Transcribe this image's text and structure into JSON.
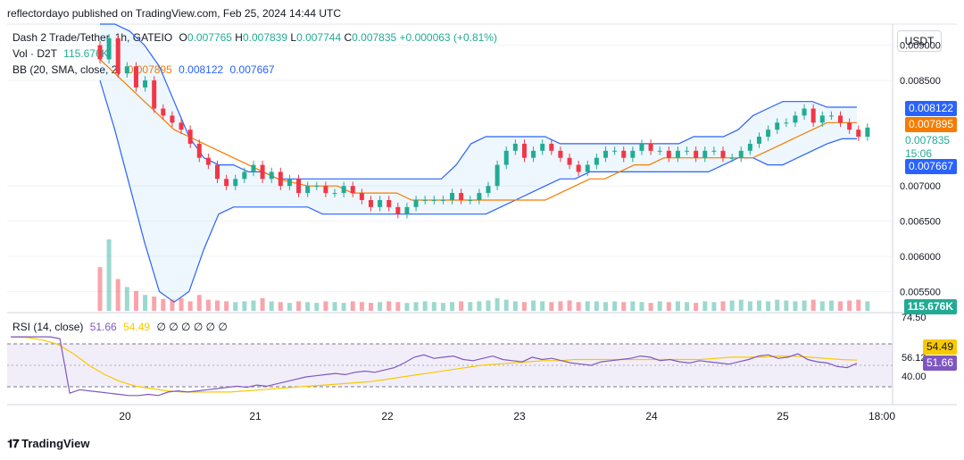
{
  "header": {
    "publisher": "reflectordayo published on TradingView.com, Feb 25, 2024 14:44 UTC"
  },
  "legend": {
    "symbol": "Dash 2 Trade/Tether, 1h, GATEIO",
    "o_label": "O",
    "o_value": "0.007765",
    "h_label": "H",
    "h_value": "0.007839",
    "l_label": "L",
    "l_value": "0.007744",
    "c_label": "C",
    "c_value": "0.007835",
    "change": "+0.000063 (+0.81%)",
    "vol_label": "Vol · D2T",
    "vol_value": "115.676K",
    "bb_label": "BB (20, SMA, close, 2)",
    "bb_basis": "0.007895",
    "bb_upper": "0.008122",
    "bb_lower": "0.007667"
  },
  "currency_button": "USDT",
  "price_axis": {
    "ticks": [
      "0.009000",
      "0.008500",
      "0.008000",
      "0.007000",
      "0.006500",
      "0.006000",
      "0.005500"
    ]
  },
  "price_badges": {
    "bb_upper": "0.008122",
    "bb_basis": "0.007895",
    "last_price": "0.007835",
    "countdown": "15:06",
    "bb_lower": "0.007667",
    "volume": "115.676K"
  },
  "rsi": {
    "label": "RSI (14, close)",
    "value": "51.66",
    "ma_value": "54.49",
    "empty": "∅ ∅ ∅ ∅ ∅ ∅",
    "axis_ticks": [
      "74.50",
      "56.12",
      "40.00"
    ],
    "upper_band": 70,
    "lower_band": 30
  },
  "time_axis": {
    "labels": [
      "20",
      "21",
      "22",
      "23",
      "24",
      "25",
      "18:00"
    ]
  },
  "footer": {
    "brand": "TradingView"
  },
  "colors": {
    "up": "#22ab94",
    "down": "#f23645",
    "basis": "#f57c00",
    "bands": "#2962ff",
    "rsi": "#7e57c2",
    "rsi_ma": "#f9c900"
  },
  "chart_data": {
    "type": "candlestick",
    "series_name": "Dash 2 Trade/Tether",
    "interval": "1h",
    "x_labels": [
      "20",
      "21",
      "22",
      "23",
      "24",
      "25",
      "18:00"
    ],
    "y_ticks": [
      0.0055,
      0.006,
      0.0065,
      0.007,
      0.0085,
      0.009
    ],
    "ylim": [
      0.0052,
      0.0093
    ],
    "close": [
      0.0088,
      0.0091,
      0.0086,
      0.0087,
      0.0084,
      0.0085,
      0.0081,
      0.008,
      0.0079,
      0.0078,
      0.0076,
      0.0074,
      0.0073,
      0.0071,
      0.007,
      0.0071,
      0.0072,
      0.0073,
      0.0071,
      0.0072,
      0.007,
      0.0071,
      0.0069,
      0.007,
      0.007,
      0.0069,
      0.0069,
      0.007,
      0.0069,
      0.0068,
      0.0067,
      0.0068,
      0.0067,
      0.0066,
      0.0067,
      0.0068,
      0.0068,
      0.0068,
      0.0068,
      0.0069,
      0.0068,
      0.0068,
      0.0069,
      0.007,
      0.0073,
      0.0075,
      0.0076,
      0.0074,
      0.0075,
      0.0076,
      0.0075,
      0.0074,
      0.0073,
      0.0072,
      0.0073,
      0.0074,
      0.0075,
      0.0075,
      0.0074,
      0.0075,
      0.0076,
      0.0075,
      0.0075,
      0.0074,
      0.0075,
      0.0075,
      0.0074,
      0.0075,
      0.0075,
      0.0074,
      0.0074,
      0.0075,
      0.0076,
      0.0077,
      0.0078,
      0.0079,
      0.0079,
      0.008,
      0.0081,
      0.0079,
      0.008,
      0.008,
      0.0079,
      0.0078,
      0.0077,
      0.00783
    ],
    "volume": [
      55,
      90,
      40,
      30,
      25,
      20,
      18,
      15,
      14,
      16,
      12,
      20,
      14,
      13,
      12,
      11,
      12,
      13,
      16,
      12,
      11,
      10,
      12,
      11,
      10,
      12,
      11,
      10,
      12,
      11,
      10,
      11,
      12,
      11,
      10,
      11,
      12,
      11,
      10,
      11,
      12,
      11,
      12,
      13,
      16,
      14,
      12,
      11,
      13,
      12,
      11,
      12,
      13,
      11,
      12,
      12,
      11,
      12,
      11,
      12,
      11,
      10,
      12,
      11,
      12,
      11,
      10,
      12,
      11,
      12,
      13,
      14,
      12,
      13,
      12,
      14,
      13,
      12,
      13,
      14,
      12,
      13,
      12,
      13,
      14,
      12
    ],
    "bb_basis": [
      0.0088,
      0.0086,
      0.0084,
      0.0082,
      0.008,
      0.0078,
      0.0077,
      0.0076,
      0.0075,
      0.0074,
      0.0073,
      0.0072,
      0.0071,
      0.00705,
      0.007,
      0.007,
      0.007,
      0.0069,
      0.0069,
      0.0069,
      0.0069,
      0.0068,
      0.0068,
      0.0068,
      0.0068,
      0.0068,
      0.0068,
      0.0068,
      0.0068,
      0.0068,
      0.0068,
      0.0069,
      0.007,
      0.0071,
      0.0071,
      0.0072,
      0.0073,
      0.0073,
      0.0074,
      0.0074,
      0.0074,
      0.0074,
      0.0074,
      0.0074,
      0.0074,
      0.0075,
      0.0076,
      0.0077,
      0.0078,
      0.0079,
      0.0079,
      0.0079
    ],
    "bb_upper": [
      0.0093,
      0.0093,
      0.0092,
      0.009,
      0.0087,
      0.0082,
      0.0077,
      0.0074,
      0.0073,
      0.0073,
      0.0072,
      0.0072,
      0.0071,
      0.0071,
      0.0071,
      0.0071,
      0.0071,
      0.0071,
      0.0071,
      0.0071,
      0.0071,
      0.0071,
      0.0071,
      0.0071,
      0.0073,
      0.0076,
      0.0077,
      0.0077,
      0.0077,
      0.0077,
      0.0077,
      0.0076,
      0.0076,
      0.0076,
      0.0076,
      0.0076,
      0.0076,
      0.0076,
      0.0076,
      0.0076,
      0.0077,
      0.0077,
      0.0077,
      0.0078,
      0.008,
      0.0081,
      0.0082,
      0.0082,
      0.0082,
      0.00812,
      0.00812,
      0.00812
    ],
    "bb_lower": [
      0.0085,
      0.0078,
      0.007,
      0.0062,
      0.0055,
      0.00535,
      0.0055,
      0.0061,
      0.0066,
      0.0067,
      0.0067,
      0.0067,
      0.0067,
      0.0067,
      0.0067,
      0.0066,
      0.0066,
      0.0066,
      0.0066,
      0.0066,
      0.0066,
      0.0066,
      0.0066,
      0.0066,
      0.0066,
      0.0066,
      0.0066,
      0.0067,
      0.0068,
      0.0069,
      0.007,
      0.0071,
      0.0071,
      0.0072,
      0.0072,
      0.0072,
      0.0072,
      0.0072,
      0.0072,
      0.0072,
      0.0072,
      0.0072,
      0.0073,
      0.0074,
      0.0074,
      0.0073,
      0.0073,
      0.0074,
      0.0075,
      0.0076,
      0.00767,
      0.00767
    ],
    "rsi": [
      74.5,
      74.5,
      74.5,
      74.5,
      74.5,
      73,
      26,
      29,
      28,
      27,
      26,
      25,
      24,
      24,
      25,
      24,
      27,
      28,
      27,
      28,
      29,
      30,
      31,
      32,
      31,
      33,
      32,
      34,
      36,
      38,
      40,
      41,
      42,
      43,
      42,
      44,
      45,
      44,
      46,
      48,
      52,
      57,
      59,
      56,
      57,
      58,
      55,
      54,
      56,
      58,
      55,
      54,
      53,
      57,
      55,
      56,
      54,
      52,
      51,
      50,
      53,
      54,
      55,
      56,
      58,
      57,
      54,
      55,
      53,
      52,
      54,
      53,
      52,
      51,
      53,
      55,
      58,
      59,
      56,
      57,
      60,
      55,
      53,
      52,
      49,
      48,
      51.66
    ],
    "rsi_ma": [
      74.5,
      74,
      72,
      68,
      60,
      50,
      42,
      36,
      32,
      30,
      28,
      27,
      27,
      27,
      27,
      28,
      29,
      30,
      31,
      32,
      33,
      34,
      35,
      36,
      38,
      40,
      42,
      44,
      46,
      48,
      50,
      51,
      52,
      53,
      54,
      54,
      55,
      55,
      55,
      55,
      55,
      55,
      55,
      55,
      55,
      56,
      57,
      57,
      57,
      58,
      58,
      57,
      56,
      55,
      54.49
    ]
  }
}
